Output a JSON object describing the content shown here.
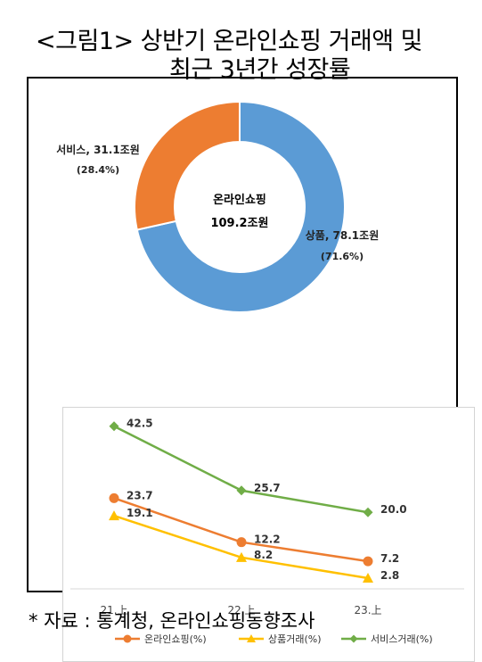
{
  "title": {
    "line1": "<그림1> 상반기 온라인쇼핑 거래액 및",
    "line2": "최근 3년간 성장률"
  },
  "source": "* 자료 : 통계청, 온라인쇼핑동향조사",
  "chart_data": [
    {
      "type": "pie",
      "style": "donut",
      "center_label": "온라인쇼핑",
      "center_value": "109.2조원",
      "slices": [
        {
          "label": "상품",
          "value": 78.1,
          "value_text": "78.1조원",
          "share_text": "(71.6%)",
          "color": "#5b9bd5"
        },
        {
          "label": "서비스",
          "value": 31.1,
          "value_text": "31.1조원",
          "share_text": "(28.4%)",
          "color": "#ed7d31"
        }
      ]
    },
    {
      "type": "line",
      "categories": [
        "21.上",
        "22.上",
        "23.上"
      ],
      "series": [
        {
          "name": "온라인쇼핑(%)",
          "values": [
            23.7,
            12.2,
            7.2
          ],
          "color": "#ed7d31",
          "marker": "circle"
        },
        {
          "name": "상품거래(%)",
          "values": [
            19.1,
            8.2,
            2.8
          ],
          "color": "#ffc000",
          "marker": "triangle"
        },
        {
          "name": "서비스거래(%)",
          "values": [
            42.5,
            25.7,
            20.0
          ],
          "color": "#70ad47",
          "marker": "diamond"
        }
      ],
      "value_labels": [
        [
          "23.7",
          "12.2",
          "7.2"
        ],
        [
          "19.1",
          "8.2",
          "2.8"
        ],
        [
          "42.5",
          "25.7",
          "20.0"
        ]
      ],
      "ylim": [
        0,
        45
      ],
      "grid": false,
      "legend_position": "bottom"
    }
  ]
}
